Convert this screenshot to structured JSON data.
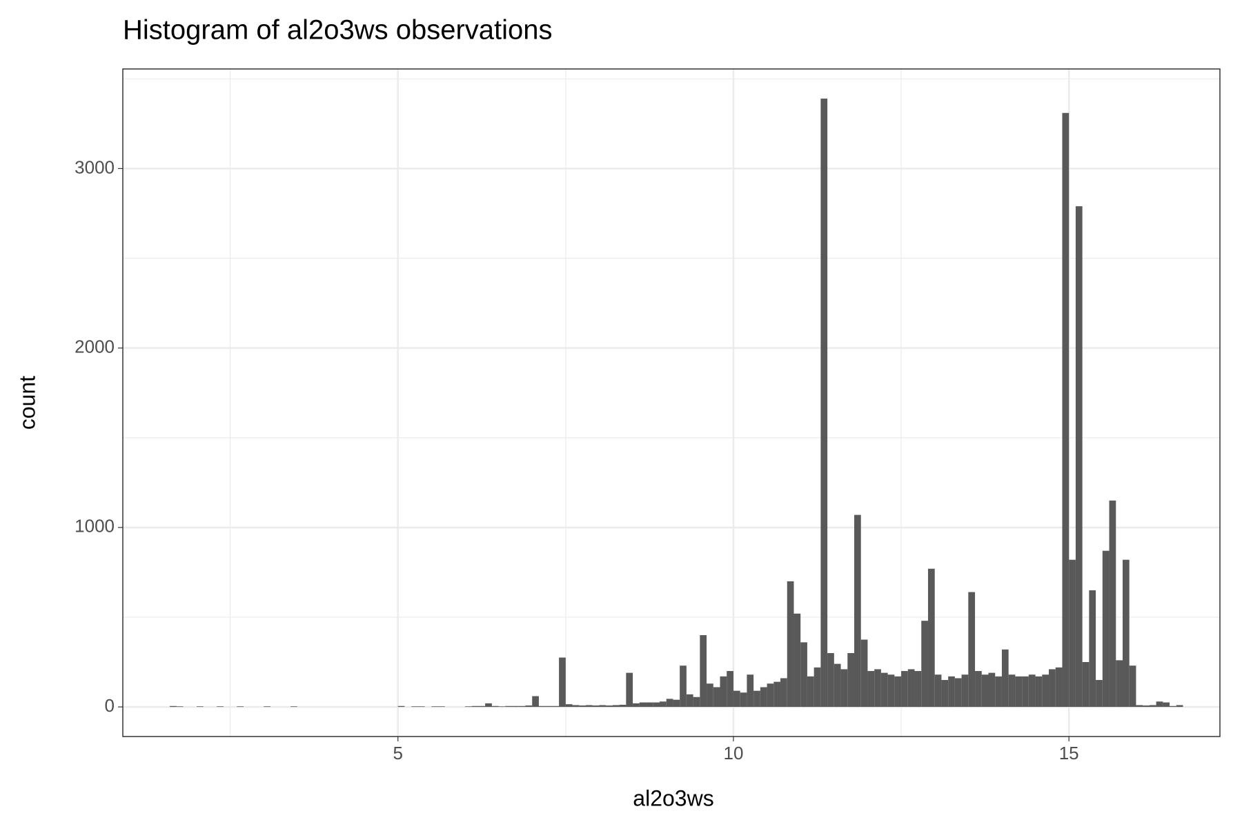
{
  "chart_data": {
    "type": "histogram",
    "title": "Histogram of al2o3ws observations",
    "x_label": "al2o3ws",
    "y_label": "count",
    "color": "#595959",
    "grid": true,
    "xlim": [
      0.9,
      17.25
    ],
    "ylim": [
      -165,
      3555
    ],
    "xticks": [
      5,
      10,
      15
    ],
    "yticks": [
      0,
      1000,
      2000,
      3000
    ],
    "xminor": [
      2.5,
      7.5,
      12.5
    ],
    "yminor": [
      500,
      1500,
      2500,
      3500
    ],
    "bins": [
      1.6,
      1.7,
      1.8,
      1.9,
      2.0,
      2.1,
      2.2,
      2.3,
      2.4,
      2.5,
      2.6,
      2.7,
      2.8,
      2.9,
      3.0,
      3.1,
      3.2,
      3.3,
      3.4,
      3.5,
      3.6,
      3.7,
      3.8,
      3.9,
      4.0,
      4.1,
      4.2,
      4.3,
      4.4,
      4.5,
      4.6,
      4.7,
      4.8,
      4.9,
      5.0,
      5.1,
      5.2,
      5.3,
      5.4,
      5.5,
      5.6,
      5.7,
      5.8,
      5.9,
      6.0,
      6.1,
      6.2,
      6.3,
      6.4,
      6.5,
      6.6,
      6.7,
      6.8,
      6.9,
      7.0,
      7.1,
      7.2,
      7.3,
      7.4,
      7.5,
      7.6,
      7.7,
      7.8,
      7.9,
      8.0,
      8.1,
      8.2,
      8.3,
      8.4,
      8.5,
      8.6,
      8.7,
      8.8,
      8.9,
      9.0,
      9.1,
      9.2,
      9.3,
      9.4,
      9.5,
      9.6,
      9.7,
      9.8,
      9.9,
      10.0,
      10.1,
      10.2,
      10.3,
      10.4,
      10.5,
      10.6,
      10.7,
      10.8,
      10.9,
      11.0,
      11.1,
      11.2,
      11.3,
      11.4,
      11.5,
      11.6,
      11.7,
      11.8,
      11.9,
      12.0,
      12.1,
      12.2,
      12.3,
      12.4,
      12.5,
      12.6,
      12.7,
      12.8,
      12.9,
      13.0,
      13.1,
      13.2,
      13.3,
      13.4,
      13.5,
      13.6,
      13.7,
      13.8,
      13.9,
      14.0,
      14.1,
      14.2,
      14.3,
      14.4,
      14.5,
      14.6,
      14.7,
      14.8,
      14.9,
      15.0,
      15.1,
      15.2,
      15.3,
      15.4,
      15.5,
      15.6,
      15.7,
      15.8,
      15.9,
      16.0,
      16.1,
      16.2,
      16.3,
      16.4,
      16.5,
      16.6,
      16.7
    ],
    "values": [
      5,
      3,
      0,
      0,
      3,
      0,
      0,
      3,
      0,
      0,
      3,
      0,
      0,
      0,
      3,
      0,
      0,
      0,
      3,
      0,
      0,
      0,
      0,
      0,
      0,
      0,
      0,
      0,
      0,
      0,
      0,
      0,
      0,
      0,
      5,
      0,
      3,
      3,
      0,
      3,
      3,
      0,
      0,
      0,
      3,
      5,
      5,
      20,
      5,
      3,
      5,
      5,
      5,
      8,
      60,
      5,
      5,
      5,
      275,
      15,
      10,
      8,
      10,
      8,
      10,
      8,
      10,
      12,
      190,
      20,
      25,
      25,
      25,
      30,
      45,
      40,
      230,
      70,
      55,
      400,
      130,
      110,
      170,
      200,
      90,
      80,
      180,
      90,
      110,
      130,
      140,
      160,
      700,
      520,
      360,
      170,
      220,
      3390,
      300,
      240,
      210,
      300,
      1070,
      375,
      200,
      210,
      190,
      180,
      170,
      200,
      210,
      200,
      480,
      770,
      180,
      150,
      170,
      160,
      180,
      640,
      200,
      180,
      190,
      170,
      320,
      180,
      170,
      170,
      180,
      170,
      180,
      210,
      220,
      3310,
      820,
      2790,
      250,
      650,
      150,
      870,
      1150,
      260,
      820,
      230,
      10,
      8,
      10,
      30,
      25,
      5,
      10
    ]
  }
}
